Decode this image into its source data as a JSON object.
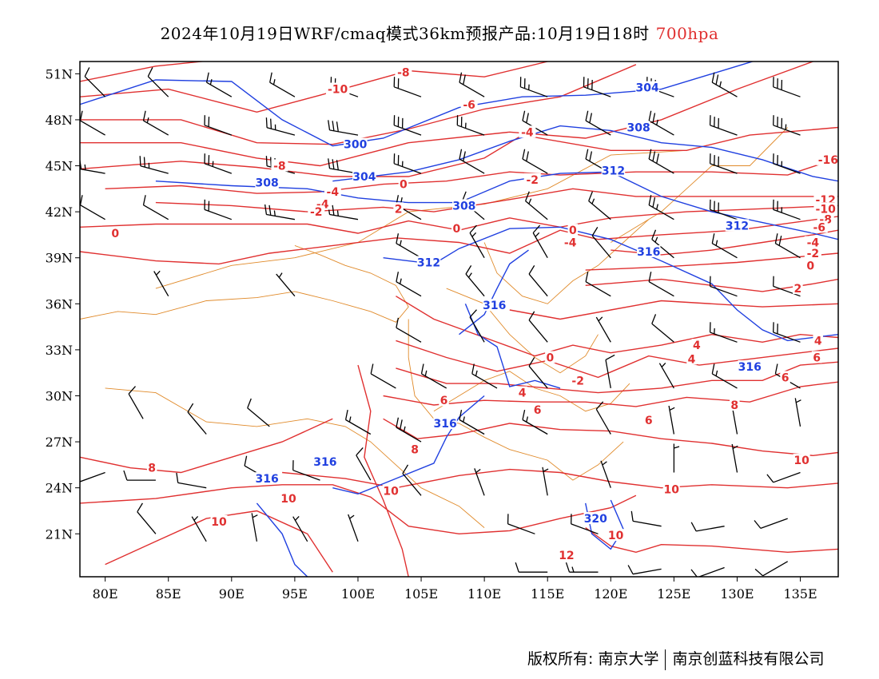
{
  "title": {
    "main": "2024年10月19日WRF/cmaq模式36km预报产品:10月19日18时",
    "level": "700hpa",
    "level_color": "#e03030"
  },
  "map": {
    "lon_range": [
      78,
      138
    ],
    "lat_range": [
      18.2,
      51.8
    ],
    "lon_ticks": [
      80,
      85,
      90,
      95,
      100,
      105,
      110,
      115,
      120,
      125,
      130,
      135
    ],
    "lon_labels": [
      "80E",
      "85E",
      "90E",
      "95E",
      "100E",
      "105E",
      "110E",
      "115E",
      "120E",
      "125E",
      "130E",
      "135E"
    ],
    "lat_ticks": [
      21,
      24,
      27,
      30,
      33,
      36,
      39,
      42,
      45,
      48,
      51
    ],
    "lat_labels": [
      "21N",
      "24N",
      "27N",
      "30N",
      "33N",
      "36N",
      "39N",
      "42N",
      "45N",
      "48N",
      "51N"
    ],
    "colors": {
      "temperature": "#e03030",
      "height": "#2040e0",
      "boundary": "#e08a2a",
      "barb": "#000000"
    },
    "temp_labels": [
      {
        "text": "-8",
        "lon": 103.6,
        "lat": 51.1
      },
      {
        "text": "-10",
        "lon": 98.4,
        "lat": 50.0
      },
      {
        "text": "-6",
        "lon": 108.8,
        "lat": 49.0
      },
      {
        "text": "-4",
        "lon": 113.4,
        "lat": 47.2
      },
      {
        "text": "-8",
        "lon": 93.8,
        "lat": 45.0
      },
      {
        "text": "0",
        "lon": 103.6,
        "lat": 43.8
      },
      {
        "text": "-2",
        "lon": 113.8,
        "lat": 44.1
      },
      {
        "text": "-4",
        "lon": 98.0,
        "lat": 43.3
      },
      {
        "text": "-4",
        "lon": 97.2,
        "lat": 42.5
      },
      {
        "text": "-2",
        "lon": 96.7,
        "lat": 42.0
      },
      {
        "text": "2",
        "lon": 103.2,
        "lat": 42.2
      },
      {
        "text": "0",
        "lon": 107.8,
        "lat": 40.9
      },
      {
        "text": "0",
        "lon": 117.0,
        "lat": 40.8
      },
      {
        "text": "-4",
        "lon": 116.8,
        "lat": 40.0
      },
      {
        "text": "0",
        "lon": 80.8,
        "lat": 40.6
      },
      {
        "text": "-12",
        "lon": 137.0,
        "lat": 42.8
      },
      {
        "text": "-10",
        "lon": 137.0,
        "lat": 42.2
      },
      {
        "text": "-8",
        "lon": 137.0,
        "lat": 41.5
      },
      {
        "text": "-6",
        "lon": 136.5,
        "lat": 41.0
      },
      {
        "text": "-4",
        "lon": 136.0,
        "lat": 40.0
      },
      {
        "text": "-2",
        "lon": 136.0,
        "lat": 39.3
      },
      {
        "text": "0",
        "lon": 135.8,
        "lat": 38.5
      },
      {
        "text": "2",
        "lon": 134.8,
        "lat": 37.0
      },
      {
        "text": "-16",
        "lon": 137.2,
        "lat": 45.4
      },
      {
        "text": "4",
        "lon": 126.8,
        "lat": 33.3
      },
      {
        "text": "4",
        "lon": 136.4,
        "lat": 33.6
      },
      {
        "text": "6",
        "lon": 136.3,
        "lat": 32.5
      },
      {
        "text": "6",
        "lon": 133.8,
        "lat": 31.2
      },
      {
        "text": "4",
        "lon": 126.4,
        "lat": 32.4
      },
      {
        "text": "8",
        "lon": 129.8,
        "lat": 29.4
      },
      {
        "text": "0",
        "lon": 115.2,
        "lat": 32.5
      },
      {
        "text": "-2",
        "lon": 117.4,
        "lat": 31.0
      },
      {
        "text": "4",
        "lon": 113.0,
        "lat": 30.2
      },
      {
        "text": "6",
        "lon": 114.2,
        "lat": 29.1
      },
      {
        "text": "6",
        "lon": 123.0,
        "lat": 28.4
      },
      {
        "text": "10",
        "lon": 135.1,
        "lat": 25.8
      },
      {
        "text": "10",
        "lon": 124.8,
        "lat": 23.9
      },
      {
        "text": "10",
        "lon": 120.4,
        "lat": 20.9
      },
      {
        "text": "12",
        "lon": 116.5,
        "lat": 19.6
      },
      {
        "text": "8",
        "lon": 104.5,
        "lat": 26.5
      },
      {
        "text": "10",
        "lon": 102.6,
        "lat": 23.8
      },
      {
        "text": "10",
        "lon": 94.5,
        "lat": 23.3
      },
      {
        "text": "10",
        "lon": 89.0,
        "lat": 21.8
      },
      {
        "text": "8",
        "lon": 83.7,
        "lat": 25.3
      },
      {
        "text": "6",
        "lon": 106.8,
        "lat": 29.7
      }
    ],
    "height_labels": [
      {
        "text": "304",
        "lon": 122.9,
        "lat": 50.1
      },
      {
        "text": "308",
        "lon": 122.2,
        "lat": 47.5
      },
      {
        "text": "300",
        "lon": 99.8,
        "lat": 46.4
      },
      {
        "text": "304",
        "lon": 100.5,
        "lat": 44.3
      },
      {
        "text": "308",
        "lon": 92.8,
        "lat": 43.9
      },
      {
        "text": "312",
        "lon": 120.2,
        "lat": 44.7
      },
      {
        "text": "308",
        "lon": 108.4,
        "lat": 42.4
      },
      {
        "text": "312",
        "lon": 130.0,
        "lat": 41.1
      },
      {
        "text": "312",
        "lon": 105.6,
        "lat": 38.7
      },
      {
        "text": "316",
        "lon": 123.0,
        "lat": 39.4
      },
      {
        "text": "316",
        "lon": 110.8,
        "lat": 35.9
      },
      {
        "text": "316",
        "lon": 131.0,
        "lat": 31.9
      },
      {
        "text": "316",
        "lon": 106.9,
        "lat": 28.2
      },
      {
        "text": "316",
        "lon": 97.4,
        "lat": 25.7
      },
      {
        "text": "316",
        "lon": 92.8,
        "lat": 24.6
      },
      {
        "text": "320",
        "lon": 118.8,
        "lat": 22.0
      }
    ],
    "barbs": [
      {
        "lon": 80,
        "lat": 49.5,
        "dir": 315,
        "spd": 10
      },
      {
        "lon": 85,
        "lat": 49.5,
        "dir": 315,
        "spd": 10
      },
      {
        "lon": 90,
        "lat": 49.5,
        "dir": 300,
        "spd": 15
      },
      {
        "lon": 95,
        "lat": 49.5,
        "dir": 300,
        "spd": 15
      },
      {
        "lon": 100,
        "lat": 49.5,
        "dir": 290,
        "spd": 20
      },
      {
        "lon": 105,
        "lat": 49.5,
        "dir": 290,
        "spd": 20
      },
      {
        "lon": 110,
        "lat": 49.5,
        "dir": 300,
        "spd": 20
      },
      {
        "lon": 115,
        "lat": 49.5,
        "dir": 290,
        "spd": 25
      },
      {
        "lon": 120,
        "lat": 49.5,
        "dir": 290,
        "spd": 30
      },
      {
        "lon": 125,
        "lat": 49.5,
        "dir": 290,
        "spd": 30
      },
      {
        "lon": 130,
        "lat": 49.5,
        "dir": 300,
        "spd": 25
      },
      {
        "lon": 135,
        "lat": 49.5,
        "dir": 290,
        "spd": 30
      },
      {
        "lon": 80,
        "lat": 47,
        "dir": 300,
        "spd": 10
      },
      {
        "lon": 85,
        "lat": 47,
        "dir": 300,
        "spd": 15
      },
      {
        "lon": 90,
        "lat": 47,
        "dir": 290,
        "spd": 20
      },
      {
        "lon": 95,
        "lat": 47,
        "dir": 285,
        "spd": 25
      },
      {
        "lon": 100,
        "lat": 47,
        "dir": 280,
        "spd": 30
      },
      {
        "lon": 105,
        "lat": 47,
        "dir": 290,
        "spd": 30
      },
      {
        "lon": 110,
        "lat": 47,
        "dir": 290,
        "spd": 25
      },
      {
        "lon": 115,
        "lat": 47,
        "dir": 300,
        "spd": 20
      },
      {
        "lon": 120,
        "lat": 47,
        "dir": 300,
        "spd": 20
      },
      {
        "lon": 125,
        "lat": 47,
        "dir": 300,
        "spd": 25
      },
      {
        "lon": 130,
        "lat": 47,
        "dir": 290,
        "spd": 30
      },
      {
        "lon": 135,
        "lat": 47,
        "dir": 290,
        "spd": 35
      },
      {
        "lon": 80,
        "lat": 44.5,
        "dir": 280,
        "spd": 25
      },
      {
        "lon": 85,
        "lat": 44.5,
        "dir": 285,
        "spd": 25
      },
      {
        "lon": 90,
        "lat": 44.5,
        "dir": 290,
        "spd": 25
      },
      {
        "lon": 95,
        "lat": 44.5,
        "dir": 285,
        "spd": 30
      },
      {
        "lon": 100,
        "lat": 44.5,
        "dir": 280,
        "spd": 30
      },
      {
        "lon": 105,
        "lat": 44.5,
        "dir": 290,
        "spd": 25
      },
      {
        "lon": 110,
        "lat": 44.5,
        "dir": 300,
        "spd": 20
      },
      {
        "lon": 115,
        "lat": 44.5,
        "dir": 300,
        "spd": 20
      },
      {
        "lon": 120,
        "lat": 44.5,
        "dir": 300,
        "spd": 20
      },
      {
        "lon": 125,
        "lat": 44.5,
        "dir": 300,
        "spd": 30
      },
      {
        "lon": 130,
        "lat": 44.5,
        "dir": 290,
        "spd": 30
      },
      {
        "lon": 135,
        "lat": 44.5,
        "dir": 290,
        "spd": 25
      },
      {
        "lon": 80,
        "lat": 41.5,
        "dir": 300,
        "spd": 10
      },
      {
        "lon": 85,
        "lat": 41.5,
        "dir": 300,
        "spd": 10
      },
      {
        "lon": 90,
        "lat": 41.5,
        "dir": 290,
        "spd": 20
      },
      {
        "lon": 95,
        "lat": 41.5,
        "dir": 280,
        "spd": 25
      },
      {
        "lon": 100,
        "lat": 41.5,
        "dir": 280,
        "spd": 25
      },
      {
        "lon": 105,
        "lat": 41.5,
        "dir": 300,
        "spd": 20
      },
      {
        "lon": 110,
        "lat": 41.5,
        "dir": 310,
        "spd": 15
      },
      {
        "lon": 115,
        "lat": 41.5,
        "dir": 310,
        "spd": 15
      },
      {
        "lon": 120,
        "lat": 41.5,
        "dir": 310,
        "spd": 15
      },
      {
        "lon": 125,
        "lat": 41.5,
        "dir": 300,
        "spd": 25
      },
      {
        "lon": 130,
        "lat": 41.5,
        "dir": 290,
        "spd": 30
      },
      {
        "lon": 135,
        "lat": 41.5,
        "dir": 290,
        "spd": 25
      },
      {
        "lon": 105,
        "lat": 39,
        "dir": 300,
        "spd": 15
      },
      {
        "lon": 110,
        "lat": 39,
        "dir": 330,
        "spd": 15
      },
      {
        "lon": 115,
        "lat": 39,
        "dir": 330,
        "spd": 15
      },
      {
        "lon": 120,
        "lat": 39,
        "dir": 320,
        "spd": 10
      },
      {
        "lon": 125,
        "lat": 39,
        "dir": 310,
        "spd": 15
      },
      {
        "lon": 130,
        "lat": 39,
        "dir": 300,
        "spd": 15
      },
      {
        "lon": 135,
        "lat": 39,
        "dir": 300,
        "spd": 20
      },
      {
        "lon": 85,
        "lat": 36.5,
        "dir": 330,
        "spd": 5
      },
      {
        "lon": 95,
        "lat": 36.5,
        "dir": 320,
        "spd": 5
      },
      {
        "lon": 105,
        "lat": 36.5,
        "dir": 300,
        "spd": 15
      },
      {
        "lon": 110,
        "lat": 36.5,
        "dir": 320,
        "spd": 15
      },
      {
        "lon": 115,
        "lat": 36.5,
        "dir": 320,
        "spd": 10
      },
      {
        "lon": 120,
        "lat": 36.5,
        "dir": 300,
        "spd": 10
      },
      {
        "lon": 125,
        "lat": 36.5,
        "dir": 300,
        "spd": 10
      },
      {
        "lon": 130,
        "lat": 36.5,
        "dir": 290,
        "spd": 10
      },
      {
        "lon": 135,
        "lat": 36.5,
        "dir": 290,
        "spd": 10
      },
      {
        "lon": 105,
        "lat": 33.5,
        "dir": 300,
        "spd": 10
      },
      {
        "lon": 110,
        "lat": 33.5,
        "dir": 330,
        "spd": 10
      },
      {
        "lon": 115,
        "lat": 33.5,
        "dir": 320,
        "spd": 10
      },
      {
        "lon": 120,
        "lat": 33.5,
        "dir": 330,
        "spd": 5
      },
      {
        "lon": 125,
        "lat": 33.5,
        "dir": 310,
        "spd": 10
      },
      {
        "lon": 130,
        "lat": 33.5,
        "dir": 290,
        "spd": 15
      },
      {
        "lon": 135,
        "lat": 33.5,
        "dir": 290,
        "spd": 20
      },
      {
        "lon": 103,
        "lat": 30.5,
        "dir": 300,
        "spd": 10
      },
      {
        "lon": 107,
        "lat": 30.5,
        "dir": 300,
        "spd": 15
      },
      {
        "lon": 111,
        "lat": 30.5,
        "dir": 300,
        "spd": 15
      },
      {
        "lon": 115,
        "lat": 30.5,
        "dir": 320,
        "spd": 10
      },
      {
        "lon": 120,
        "lat": 30.5,
        "dir": 350,
        "spd": 10
      },
      {
        "lon": 125,
        "lat": 30.5,
        "dir": 330,
        "spd": 5
      },
      {
        "lon": 130,
        "lat": 30.5,
        "dir": 300,
        "spd": 15
      },
      {
        "lon": 135,
        "lat": 30.5,
        "dir": 300,
        "spd": 10
      },
      {
        "lon": 83,
        "lat": 28.5,
        "dir": 330,
        "spd": 10
      },
      {
        "lon": 88,
        "lat": 27.5,
        "dir": 320,
        "spd": 10
      },
      {
        "lon": 93,
        "lat": 28,
        "dir": 310,
        "spd": 10
      },
      {
        "lon": 101,
        "lat": 27.5,
        "dir": 300,
        "spd": 15
      },
      {
        "lon": 105,
        "lat": 27,
        "dir": 300,
        "spd": 25
      },
      {
        "lon": 110,
        "lat": 27.5,
        "dir": 300,
        "spd": 15
      },
      {
        "lon": 115,
        "lat": 27.5,
        "dir": 300,
        "spd": 15
      },
      {
        "lon": 120,
        "lat": 27.5,
        "dir": 330,
        "spd": 10
      },
      {
        "lon": 125,
        "lat": 27.5,
        "dir": 350,
        "spd": 5
      },
      {
        "lon": 130,
        "lat": 27.5,
        "dir": 350,
        "spd": 5
      },
      {
        "lon": 135,
        "lat": 28,
        "dir": 350,
        "spd": 5
      },
      {
        "lon": 80,
        "lat": 25,
        "dir": 250,
        "spd": 10
      },
      {
        "lon": 84,
        "lat": 24.5,
        "dir": 270,
        "spd": 10
      },
      {
        "lon": 88,
        "lat": 24,
        "dir": 280,
        "spd": 10
      },
      {
        "lon": 93,
        "lat": 24.5,
        "dir": 300,
        "spd": 10
      },
      {
        "lon": 97,
        "lat": 24.5,
        "dir": 290,
        "spd": 10
      },
      {
        "lon": 101,
        "lat": 24.5,
        "dir": 330,
        "spd": 10
      },
      {
        "lon": 105,
        "lat": 23.5,
        "dir": 320,
        "spd": 10
      },
      {
        "lon": 110,
        "lat": 23.5,
        "dir": 340,
        "spd": 5
      },
      {
        "lon": 115,
        "lat": 23.5,
        "dir": 350,
        "spd": 5
      },
      {
        "lon": 120,
        "lat": 24,
        "dir": 340,
        "spd": 5
      },
      {
        "lon": 125,
        "lat": 25,
        "dir": 360,
        "spd": 5
      },
      {
        "lon": 130,
        "lat": 25,
        "dir": 350,
        "spd": 5
      },
      {
        "lon": 135,
        "lat": 25,
        "dir": 250,
        "spd": 10
      },
      {
        "lon": 84,
        "lat": 21,
        "dir": 320,
        "spd": 10
      },
      {
        "lon": 88,
        "lat": 20.5,
        "dir": 330,
        "spd": 5
      },
      {
        "lon": 92,
        "lat": 20.5,
        "dir": 350,
        "spd": 5
      },
      {
        "lon": 96,
        "lat": 20.5,
        "dir": 330,
        "spd": 5
      },
      {
        "lon": 100,
        "lat": 20.5,
        "dir": 340,
        "spd": 5
      },
      {
        "lon": 114,
        "lat": 21,
        "dir": 290,
        "spd": 10
      },
      {
        "lon": 119,
        "lat": 21,
        "dir": 290,
        "spd": 10
      },
      {
        "lon": 124,
        "lat": 21.5,
        "dir": 280,
        "spd": 10
      },
      {
        "lon": 129,
        "lat": 21.5,
        "dir": 260,
        "spd": 10
      },
      {
        "lon": 134,
        "lat": 22,
        "dir": 250,
        "spd": 10
      },
      {
        "lon": 115,
        "lat": 18.5,
        "dir": 270,
        "spd": 10
      },
      {
        "lon": 119,
        "lat": 18.5,
        "dir": 270,
        "spd": 15
      },
      {
        "lon": 124,
        "lat": 18.7,
        "dir": 260,
        "spd": 10
      },
      {
        "lon": 129,
        "lat": 18.8,
        "dir": 250,
        "spd": 10
      },
      {
        "lon": 134,
        "lat": 19.2,
        "dir": 240,
        "spd": 10
      }
    ]
  },
  "footer": {
    "left": "版权所有: 南京大学",
    "right": "南京创蓝科技有限公司"
  }
}
